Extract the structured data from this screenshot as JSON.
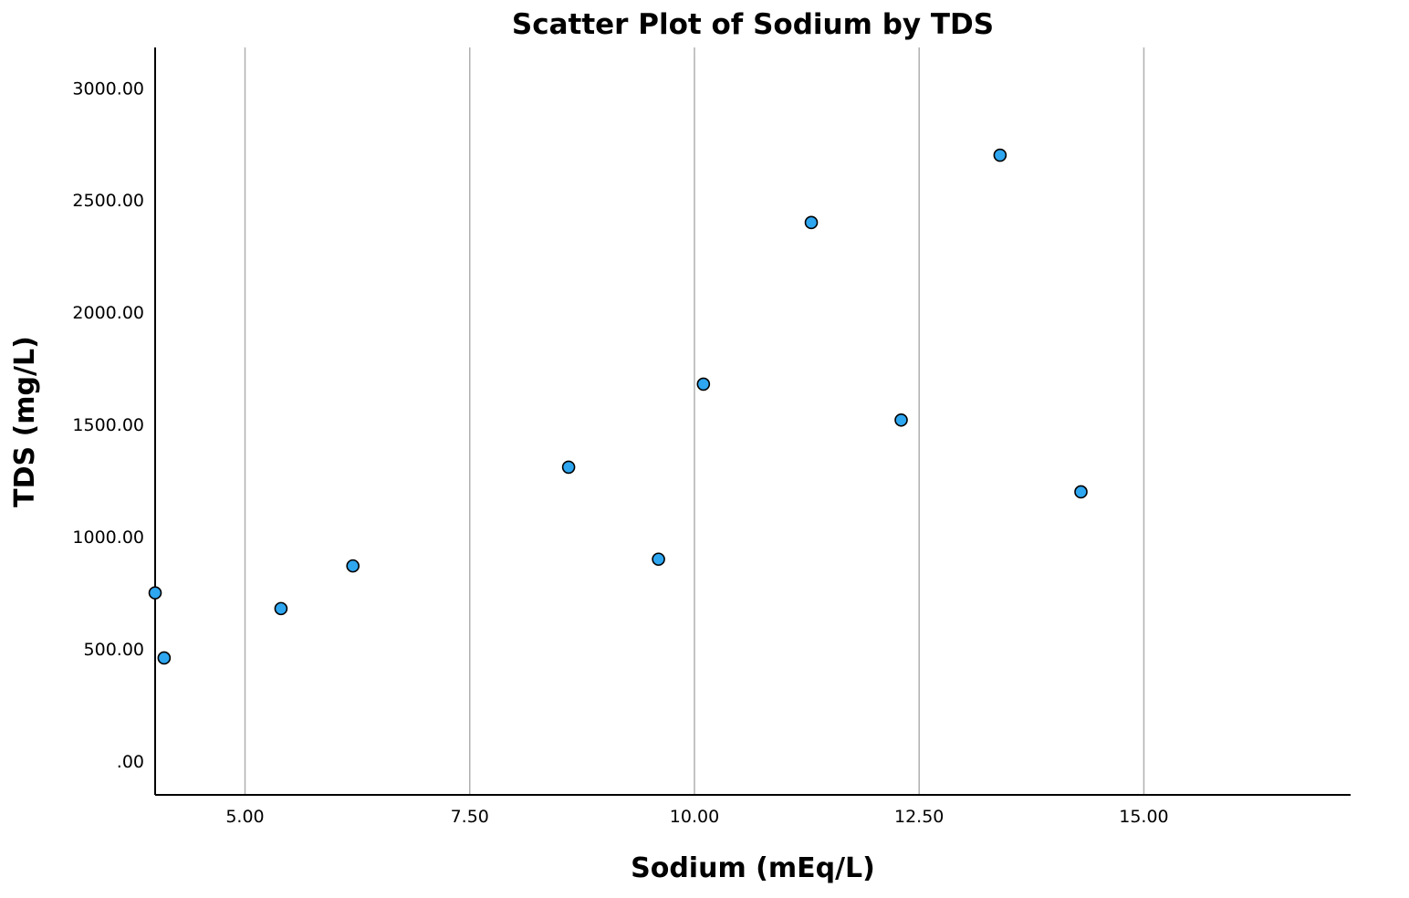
{
  "chart_data": {
    "type": "scatter",
    "title": "Scatter Plot of Sodium by TDS",
    "xlabel": "Sodium (mEq/L)",
    "ylabel": "TDS (mg/L)",
    "xlim": [
      4.0,
      17.3
    ],
    "ylim": [
      -150,
      3180
    ],
    "x_ticks": [
      5,
      7.5,
      10,
      12.5,
      15
    ],
    "x_tick_labels": [
      "5.00",
      "7.50",
      "10.00",
      "12.50",
      "15.00"
    ],
    "y_ticks": [
      0,
      500,
      1000,
      1500,
      2000,
      2500,
      3000
    ],
    "y_tick_labels": [
      ".00",
      "500.00",
      "1000.00",
      "1500.00",
      "2000.00",
      "2500.00",
      "3000.00"
    ],
    "grid": "vertical",
    "legend": "none",
    "points": [
      {
        "x": 4.0,
        "y": 750
      },
      {
        "x": 4.1,
        "y": 460
      },
      {
        "x": 5.4,
        "y": 680
      },
      {
        "x": 6.2,
        "y": 870
      },
      {
        "x": 8.6,
        "y": 1310
      },
      {
        "x": 9.6,
        "y": 900
      },
      {
        "x": 10.1,
        "y": 1680
      },
      {
        "x": 11.3,
        "y": 2400
      },
      {
        "x": 12.3,
        "y": 1520
      },
      {
        "x": 13.4,
        "y": 2700
      },
      {
        "x": 14.3,
        "y": 1200
      }
    ],
    "colors": {
      "marker_fill": "#2ea6f0",
      "marker_stroke": "#000000",
      "gridline": "#b0b0b0",
      "axis": "#000000"
    }
  }
}
